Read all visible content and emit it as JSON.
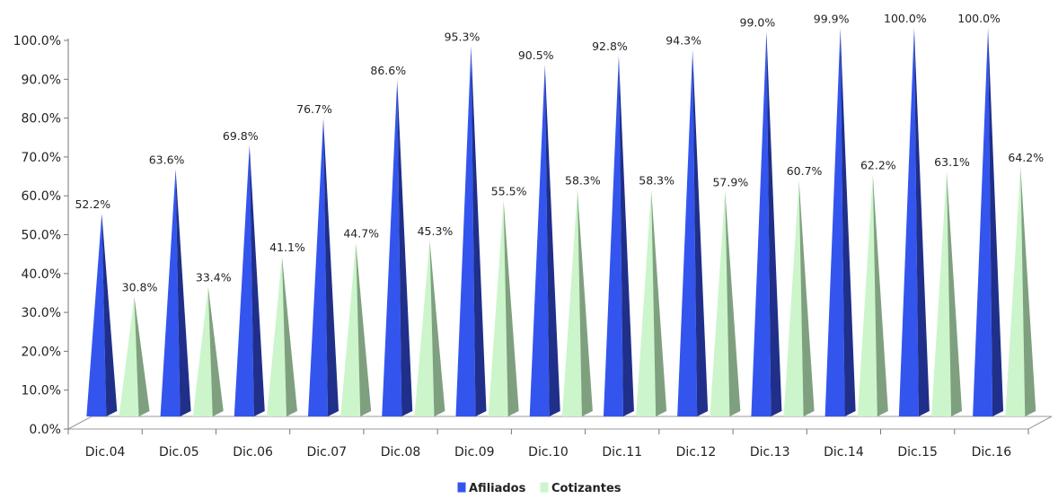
{
  "chart_data": {
    "type": "bar",
    "categories": [
      "Dic.04",
      "Dic.05",
      "Dic.06",
      "Dic.07",
      "Dic.08",
      "Dic.09",
      "Dic.10",
      "Dic.11",
      "Dic.12",
      "Dic.13",
      "Dic.14",
      "Dic.15",
      "Dic.16"
    ],
    "series": [
      {
        "name": "Afiliados",
        "values": [
          52.2,
          63.6,
          69.8,
          76.7,
          86.6,
          95.3,
          90.5,
          92.8,
          94.3,
          99.0,
          99.9,
          100.0,
          100.0
        ],
        "labels": [
          "52.2%",
          "63.6%",
          "69.8%",
          "76.7%",
          "86.6%",
          "95.3%",
          "90.5%",
          "92.8%",
          "94.3%",
          "99.0%",
          "99.9%",
          "100.0%",
          "100.0%"
        ],
        "color": "#3355ee",
        "shade": "#1f2f8a"
      },
      {
        "name": "Cotizantes",
        "values": [
          30.8,
          33.4,
          41.1,
          44.7,
          45.3,
          55.5,
          58.3,
          58.3,
          57.9,
          60.7,
          62.2,
          63.1,
          64.2
        ],
        "labels": [
          "30.8%",
          "33.4%",
          "41.1%",
          "44.7%",
          "45.3%",
          "55.5%",
          "58.3%",
          "58.3%",
          "57.9%",
          "60.7%",
          "62.2%",
          "63.1%",
          "64.2%"
        ],
        "color": "#ccf5cc",
        "shade": "#7fa07f"
      }
    ],
    "yticks": [
      "0.0%",
      "10.0%",
      "20.0%",
      "30.0%",
      "40.0%",
      "50.0%",
      "60.0%",
      "70.0%",
      "80.0%",
      "90.0%",
      "100.0%"
    ],
    "ylim": [
      0,
      100
    ],
    "legend_position": "bottom",
    "title": "",
    "xlabel": "",
    "ylabel": ""
  }
}
